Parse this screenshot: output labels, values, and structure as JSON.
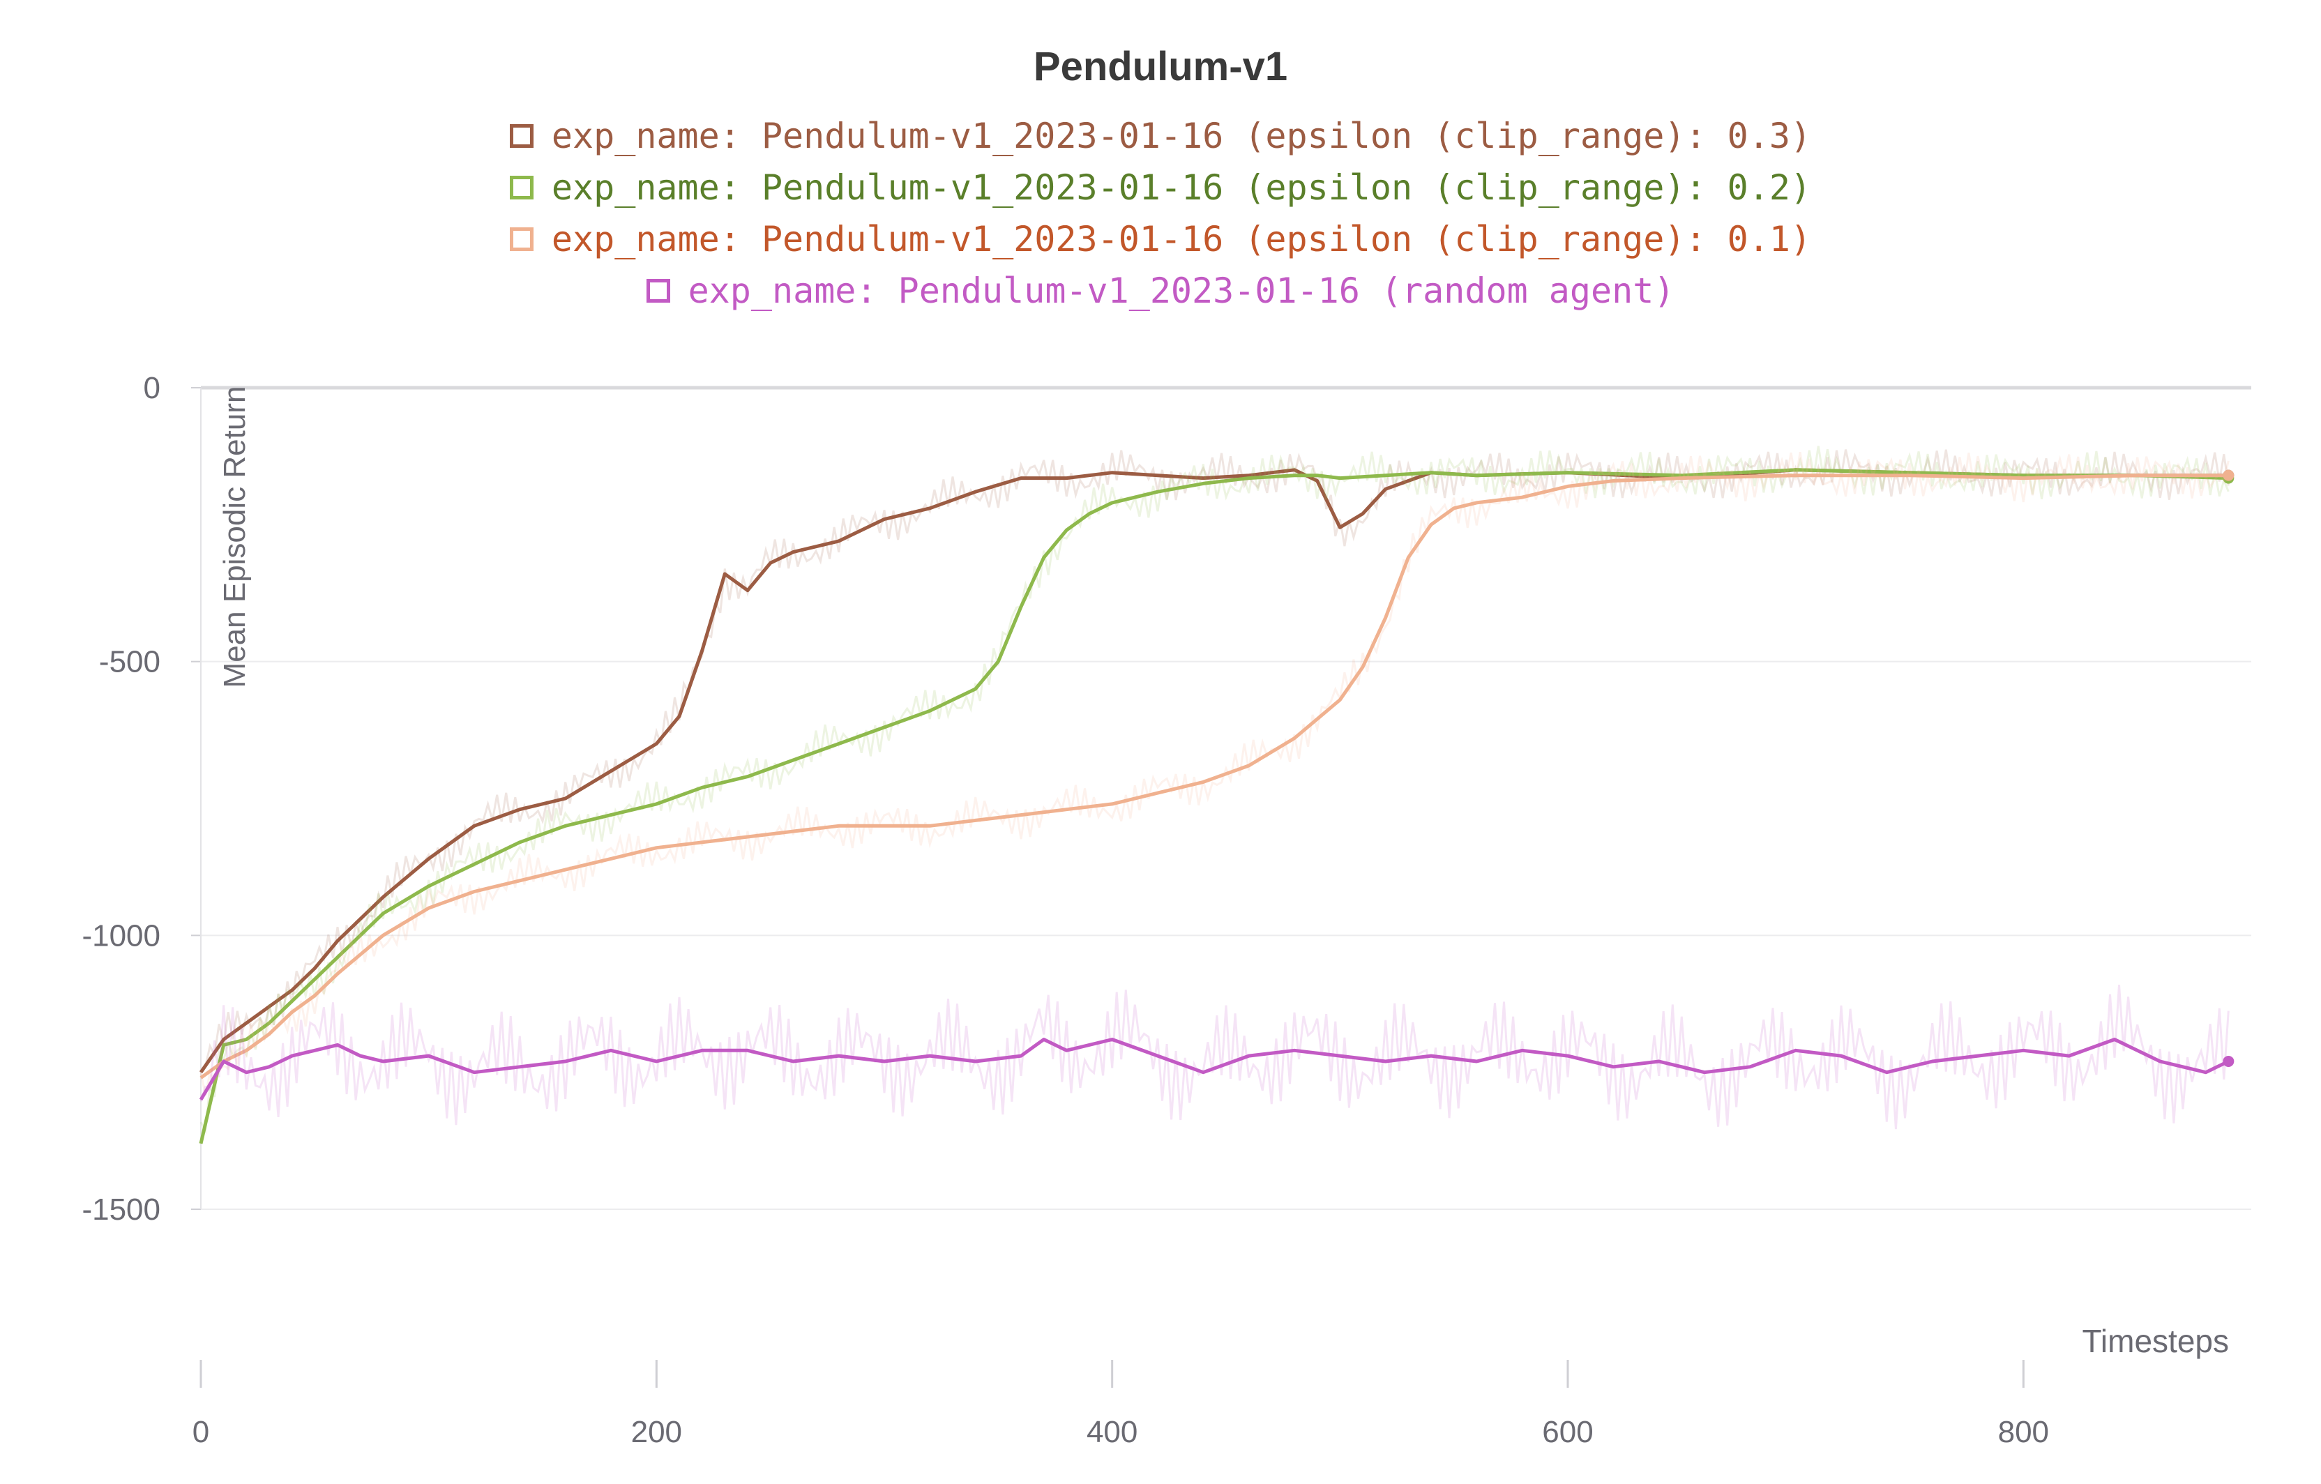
{
  "chart_data": {
    "type": "line",
    "title": "Pendulum-v1",
    "xlabel": "Timesteps",
    "ylabel": "Mean Episodic Return",
    "xlim": [
      0,
      900
    ],
    "ylim": [
      -1500,
      0
    ],
    "xticks": [
      "0",
      "200",
      "400",
      "600",
      "800"
    ],
    "yticks": [
      "0",
      "-500",
      "-1000",
      "-1500"
    ],
    "grid": true,
    "legend_position": "top",
    "series": [
      {
        "name": "exp_name: Pendulum-v1_2023-01-16 (epsilon (clip_range): 0.3)",
        "color": "#9c5c43",
        "x": [
          0,
          10,
          20,
          30,
          40,
          50,
          60,
          80,
          100,
          120,
          140,
          160,
          180,
          200,
          210,
          220,
          230,
          240,
          250,
          260,
          280,
          300,
          320,
          340,
          360,
          380,
          400,
          420,
          440,
          460,
          480,
          490,
          500,
          510,
          520,
          540,
          560,
          600,
          650,
          700,
          750,
          800,
          850,
          890
        ],
        "y": [
          -1250,
          -1190,
          -1160,
          -1130,
          -1100,
          -1060,
          -1010,
          -930,
          -860,
          -800,
          -770,
          -750,
          -700,
          -650,
          -600,
          -480,
          -340,
          -370,
          -320,
          -300,
          -280,
          -240,
          -220,
          -190,
          -165,
          -165,
          -155,
          -160,
          -165,
          -160,
          -150,
          -170,
          -255,
          -230,
          -185,
          -155,
          -160,
          -155,
          -165,
          -150,
          -155,
          -160,
          -160,
          -160
        ]
      },
      {
        "name": "exp_name: Pendulum-v1_2023-01-16 (epsilon (clip_range): 0.2)",
        "color": "#8eb94c",
        "x": [
          0,
          10,
          20,
          30,
          40,
          50,
          60,
          80,
          100,
          120,
          140,
          160,
          180,
          200,
          220,
          240,
          260,
          280,
          300,
          320,
          340,
          350,
          360,
          370,
          380,
          390,
          400,
          420,
          440,
          460,
          480,
          490,
          500,
          520,
          540,
          560,
          600,
          650,
          700,
          750,
          800,
          850,
          890
        ],
        "y": [
          -1380,
          -1200,
          -1190,
          -1160,
          -1120,
          -1080,
          -1040,
          -960,
          -910,
          -870,
          -830,
          -800,
          -780,
          -760,
          -730,
          -710,
          -680,
          -650,
          -620,
          -590,
          -550,
          -500,
          -400,
          -310,
          -260,
          -230,
          -210,
          -190,
          -175,
          -165,
          -160,
          -160,
          -165,
          -160,
          -155,
          -160,
          -155,
          -160,
          -150,
          -155,
          -160,
          -160,
          -165
        ]
      },
      {
        "name": "exp_name: Pendulum-v1_2023-01-16 (epsilon (clip_range): 0.1)",
        "color": "#f0b18f",
        "x": [
          0,
          10,
          20,
          30,
          40,
          50,
          60,
          80,
          100,
          120,
          140,
          160,
          180,
          200,
          220,
          240,
          260,
          280,
          300,
          320,
          340,
          360,
          380,
          400,
          420,
          440,
          460,
          480,
          500,
          510,
          520,
          530,
          540,
          550,
          560,
          580,
          600,
          620,
          650,
          700,
          750,
          800,
          850,
          890
        ],
        "y": [
          -1260,
          -1230,
          -1210,
          -1180,
          -1140,
          -1110,
          -1070,
          -1000,
          -950,
          -920,
          -900,
          -880,
          -860,
          -840,
          -830,
          -820,
          -810,
          -800,
          -800,
          -800,
          -790,
          -780,
          -770,
          -760,
          -740,
          -720,
          -690,
          -640,
          -570,
          -510,
          -420,
          -310,
          -250,
          -220,
          -210,
          -200,
          -180,
          -170,
          -165,
          -160,
          -160,
          -165,
          -160,
          -160
        ]
      },
      {
        "name": "exp_name: Pendulum-v1_2023-01-16 (random agent)",
        "color": "#c25ac4",
        "x": [
          0,
          10,
          20,
          30,
          40,
          50,
          60,
          70,
          80,
          100,
          120,
          140,
          160,
          180,
          200,
          220,
          240,
          260,
          280,
          300,
          320,
          340,
          360,
          370,
          380,
          400,
          420,
          440,
          460,
          480,
          500,
          520,
          540,
          560,
          580,
          600,
          620,
          640,
          660,
          680,
          700,
          720,
          740,
          760,
          780,
          800,
          820,
          840,
          860,
          880,
          890
        ],
        "y": [
          -1300,
          -1230,
          -1250,
          -1240,
          -1220,
          -1210,
          -1200,
          -1220,
          -1230,
          -1220,
          -1250,
          -1240,
          -1230,
          -1210,
          -1230,
          -1210,
          -1210,
          -1230,
          -1220,
          -1230,
          -1220,
          -1230,
          -1220,
          -1190,
          -1210,
          -1190,
          -1220,
          -1250,
          -1220,
          -1210,
          -1220,
          -1230,
          -1220,
          -1230,
          -1210,
          -1220,
          -1240,
          -1230,
          -1250,
          -1240,
          -1210,
          -1220,
          -1250,
          -1230,
          -1220,
          -1210,
          -1220,
          -1190,
          -1230,
          -1250,
          -1230
        ]
      }
    ]
  }
}
